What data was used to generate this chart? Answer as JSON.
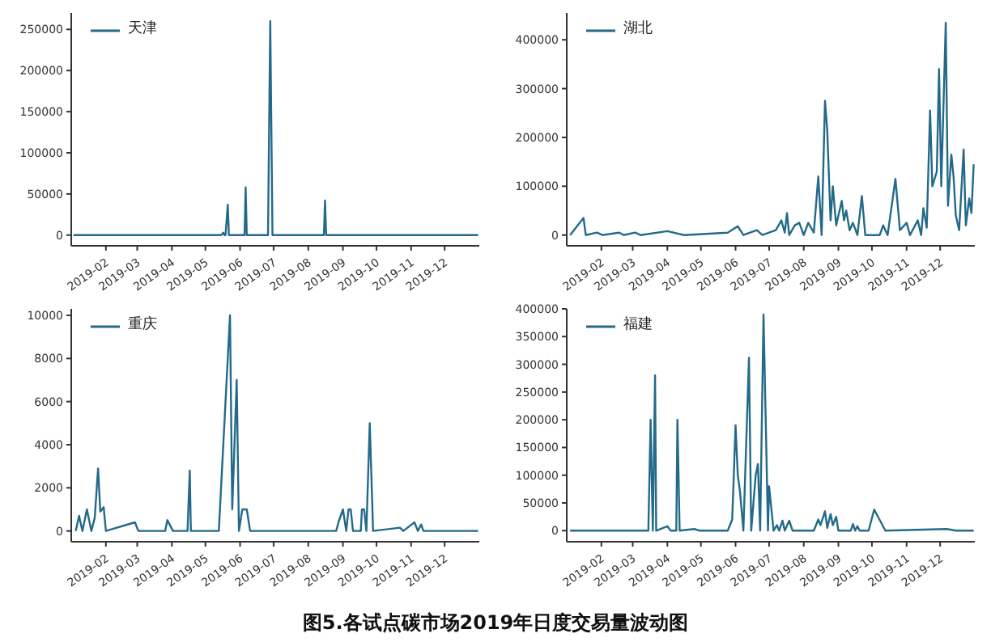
{
  "chart_data": [
    {
      "type": "line",
      "xlim": [
        "2019-01-01",
        "2020-01-01"
      ],
      "xticks": [
        "2019-02",
        "2019-03",
        "2019-04",
        "2019-05",
        "2019-06",
        "2019-07",
        "2019-08",
        "2019-09",
        "2019-10",
        "2019-11",
        "2019-12"
      ],
      "ylim": [
        -13000,
        270000
      ],
      "yticks": [
        0,
        50000,
        100000,
        150000,
        200000,
        250000
      ],
      "legend": "top left",
      "grid": false,
      "marker": "none",
      "line_style": "solid",
      "x": [
        "2019-01-03",
        "2019-05-15",
        "2019-05-17",
        "2019-05-18",
        "2019-05-19",
        "2019-05-21",
        "2019-05-22",
        "2019-06-05",
        "2019-06-06",
        "2019-06-07",
        "2019-06-26",
        "2019-06-28",
        "2019-06-30",
        "2019-08-15",
        "2019-08-16",
        "2019-08-17",
        "2019-12-31"
      ],
      "series": [
        {
          "name": "天津",
          "color": "#236a8a",
          "values": [
            0,
            0,
            3000,
            0,
            0,
            37000,
            0,
            0,
            58000,
            0,
            0,
            260000,
            0,
            0,
            42000,
            0,
            0
          ]
        }
      ]
    },
    {
      "type": "line",
      "xlim": [
        "2019-01-01",
        "2020-01-01"
      ],
      "xticks": [
        "2019-02",
        "2019-03",
        "2019-04",
        "2019-05",
        "2019-06",
        "2019-07",
        "2019-08",
        "2019-09",
        "2019-10",
        "2019-11",
        "2019-12"
      ],
      "ylim": [
        -22000,
        455000
      ],
      "yticks": [
        0,
        100000,
        200000,
        300000,
        400000
      ],
      "legend": "top left",
      "grid": false,
      "marker": "none",
      "line_style": "solid",
      "x": [
        "2019-01-04",
        "2019-01-16",
        "2019-01-18",
        "2019-01-28",
        "2019-02-02",
        "2019-02-17",
        "2019-02-21",
        "2019-03-03",
        "2019-03-08",
        "2019-04-01",
        "2019-04-16",
        "2019-05-25",
        "2019-06-03",
        "2019-06-08",
        "2019-06-20",
        "2019-06-25",
        "2019-07-07",
        "2019-07-12",
        "2019-07-15",
        "2019-07-17",
        "2019-07-19",
        "2019-07-24",
        "2019-07-28",
        "2019-08-01",
        "2019-08-05",
        "2019-08-10",
        "2019-08-14",
        "2019-08-17",
        "2019-08-20",
        "2019-08-22",
        "2019-08-25",
        "2019-08-27",
        "2019-08-30",
        "2019-09-04",
        "2019-09-06",
        "2019-09-08",
        "2019-09-11",
        "2019-09-14",
        "2019-09-18",
        "2019-09-22",
        "2019-09-25",
        "2019-10-08",
        "2019-10-11",
        "2019-10-15",
        "2019-10-22",
        "2019-10-26",
        "2019-11-01",
        "2019-11-04",
        "2019-11-11",
        "2019-11-14",
        "2019-11-16",
        "2019-11-19",
        "2019-11-22",
        "2019-11-24",
        "2019-11-28",
        "2019-11-30",
        "2019-12-02",
        "2019-12-06",
        "2019-12-08",
        "2019-12-11",
        "2019-12-13",
        "2019-12-15",
        "2019-12-18",
        "2019-12-22",
        "2019-12-24",
        "2019-12-27",
        "2019-12-29",
        "2019-12-31"
      ],
      "series": [
        {
          "name": "湖北",
          "color": "#236a8a",
          "values": [
            0,
            35000,
            0,
            5000,
            0,
            5000,
            0,
            5000,
            0,
            8000,
            0,
            5000,
            18000,
            0,
            10000,
            0,
            10000,
            30000,
            5000,
            45000,
            0,
            20000,
            25000,
            0,
            25000,
            5000,
            120000,
            0,
            275000,
            215000,
            30000,
            100000,
            20000,
            70000,
            30000,
            50000,
            10000,
            25000,
            0,
            80000,
            0,
            0,
            20000,
            0,
            115000,
            10000,
            25000,
            0,
            30000,
            0,
            55000,
            15000,
            255000,
            100000,
            130000,
            340000,
            100000,
            435000,
            60000,
            165000,
            120000,
            40000,
            10000,
            175000,
            20000,
            75000,
            45000,
            145000
          ]
        }
      ]
    },
    {
      "type": "line",
      "xlim": [
        "2019-01-01",
        "2020-01-01"
      ],
      "xticks": [
        "2019-02",
        "2019-03",
        "2019-04",
        "2019-05",
        "2019-06",
        "2019-07",
        "2019-08",
        "2019-09",
        "2019-10",
        "2019-11",
        "2019-12"
      ],
      "ylim": [
        -500,
        10300
      ],
      "yticks": [
        0,
        2000,
        4000,
        6000,
        8000,
        10000
      ],
      "legend": "top left",
      "grid": false,
      "marker": "none",
      "line_style": "solid",
      "x": [
        "2019-01-05",
        "2019-01-08",
        "2019-01-11",
        "2019-01-15",
        "2019-01-19",
        "2019-01-22",
        "2019-01-25",
        "2019-01-27",
        "2019-01-30",
        "2019-02-01",
        "2019-02-27",
        "2019-03-02",
        "2019-03-26",
        "2019-03-28",
        "2019-04-02",
        "2019-04-15",
        "2019-04-17",
        "2019-04-18",
        "2019-05-13",
        "2019-05-23",
        "2019-05-25",
        "2019-05-29",
        "2019-05-31",
        "2019-06-03",
        "2019-06-07",
        "2019-06-10",
        "2019-08-26",
        "2019-08-28",
        "2019-09-01",
        "2019-09-04",
        "2019-09-06",
        "2019-09-08",
        "2019-09-10",
        "2019-09-17",
        "2019-09-18",
        "2019-09-20",
        "2019-09-22",
        "2019-09-25",
        "2019-09-28",
        "2019-10-22",
        "2019-10-25",
        "2019-11-04",
        "2019-11-07",
        "2019-11-10",
        "2019-11-12",
        "2019-12-31"
      ],
      "series": [
        {
          "name": "重庆",
          "color": "#236a8a",
          "values": [
            0,
            700,
            0,
            1000,
            0,
            600,
            2900,
            900,
            1100,
            0,
            400,
            0,
            0,
            500,
            0,
            0,
            2800,
            0,
            0,
            10000,
            1000,
            7000,
            0,
            1000,
            1000,
            0,
            0,
            400,
            1000,
            0,
            1000,
            1000,
            0,
            0,
            1000,
            1000,
            0,
            5000,
            0,
            150,
            0,
            400,
            0,
            300,
            0,
            0
          ]
        }
      ]
    },
    {
      "type": "line",
      "xlim": [
        "2019-01-01",
        "2020-01-01"
      ],
      "xticks": [
        "2019-02",
        "2019-03",
        "2019-04",
        "2019-05",
        "2019-06",
        "2019-07",
        "2019-08",
        "2019-09",
        "2019-10",
        "2019-11",
        "2019-12"
      ],
      "ylim": [
        -20000,
        400000
      ],
      "yticks": [
        0,
        50000,
        100000,
        150000,
        200000,
        250000,
        300000,
        350000,
        400000
      ],
      "legend": "top left",
      "grid": false,
      "marker": "none",
      "line_style": "solid",
      "x": [
        "2019-01-04",
        "2019-03-15",
        "2019-03-17",
        "2019-03-19",
        "2019-03-21",
        "2019-03-22",
        "2019-04-01",
        "2019-04-04",
        "2019-04-09",
        "2019-04-10",
        "2019-04-12",
        "2019-04-25",
        "2019-04-30",
        "2019-05-25",
        "2019-05-29",
        "2019-06-01",
        "2019-06-03",
        "2019-06-05",
        "2019-06-08",
        "2019-06-13",
        "2019-06-15",
        "2019-06-19",
        "2019-06-21",
        "2019-06-23",
        "2019-06-26",
        "2019-06-29",
        "2019-06-30",
        "2019-07-01",
        "2019-07-03",
        "2019-07-05",
        "2019-07-08",
        "2019-07-10",
        "2019-07-13",
        "2019-07-15",
        "2019-07-19",
        "2019-07-22",
        "2019-08-10",
        "2019-08-14",
        "2019-08-16",
        "2019-08-20",
        "2019-08-22",
        "2019-08-25",
        "2019-08-27",
        "2019-08-30",
        "2019-09-01",
        "2019-09-12",
        "2019-09-14",
        "2019-09-16",
        "2019-09-18",
        "2019-09-20",
        "2019-09-28",
        "2019-10-03",
        "2019-10-13",
        "2019-12-07",
        "2019-12-15",
        "2019-12-31"
      ],
      "series": [
        {
          "name": "福建",
          "color": "#236a8a",
          "values": [
            0,
            0,
            200000,
            0,
            280000,
            0,
            8000,
            0,
            0,
            200000,
            0,
            3000,
            0,
            0,
            20000,
            190000,
            100000,
            70000,
            0,
            312000,
            0,
            100000,
            120000,
            0,
            390000,
            100000,
            0,
            80000,
            40000,
            0,
            10000,
            0,
            18000,
            0,
            18000,
            0,
            0,
            20000,
            10000,
            35000,
            5000,
            30000,
            10000,
            25000,
            0,
            0,
            12000,
            0,
            8000,
            0,
            0,
            38000,
            0,
            3000,
            0,
            0
          ]
        }
      ],
      "annotations": [
        "图5.各试点碳市场2019年日度交易量波动图"
      ]
    }
  ]
}
